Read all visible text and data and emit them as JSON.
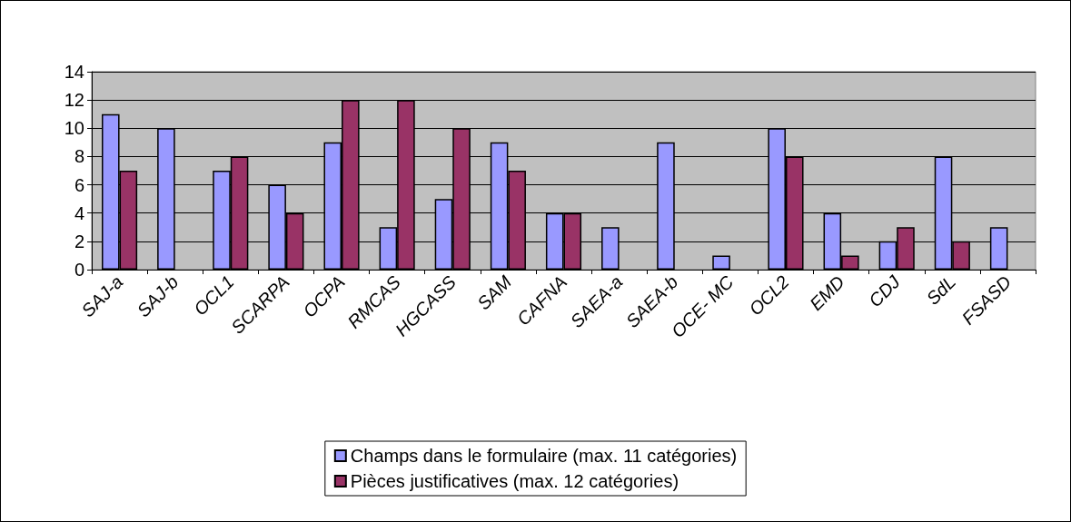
{
  "chart_data": {
    "type": "bar",
    "categories": [
      "SAJ-a",
      "SAJ-b",
      "OCL1",
      "SCARPA",
      "OCPA",
      "RMCAS",
      "HGCASS",
      "SAM",
      "CAFNA",
      "SAEA-a",
      "SAEA-b",
      "OCE- MC",
      "OCL2",
      "EMD",
      "CDJ",
      "SdL",
      "FSASD"
    ],
    "series": [
      {
        "name": "Champs dans le formulaire (max. 11 catégories)",
        "color": "#9999ff",
        "values": [
          11,
          10,
          7,
          6,
          9,
          3,
          5,
          9,
          4,
          3,
          9,
          1,
          10,
          4,
          2,
          8,
          3
        ]
      },
      {
        "name": "Pièces justificatives (max. 12 catégories)",
        "color": "#993366",
        "values": [
          7,
          null,
          8,
          4,
          12,
          12,
          10,
          7,
          4,
          null,
          null,
          null,
          8,
          1,
          3,
          2,
          null
        ]
      }
    ],
    "ylim": [
      0,
      14
    ],
    "yticks": [
      0,
      2,
      4,
      6,
      8,
      10,
      12,
      14
    ],
    "grid": "y",
    "legend": "bottom"
  }
}
